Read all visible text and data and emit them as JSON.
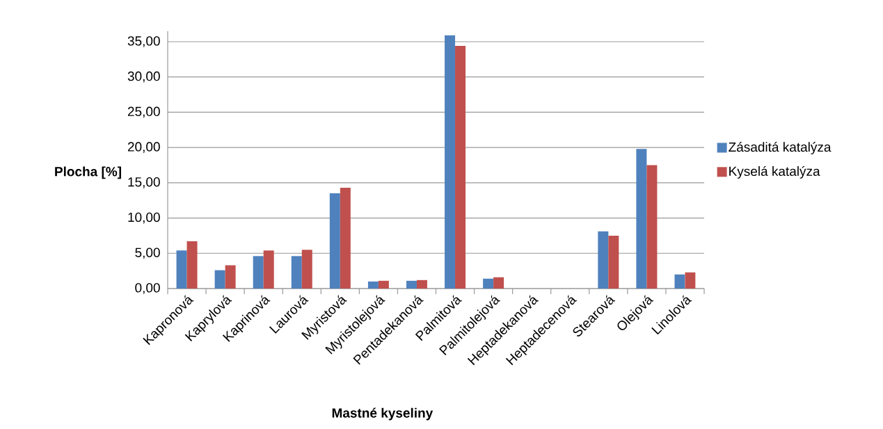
{
  "chart_data": {
    "type": "bar",
    "xlabel": "Mastné kyseliny",
    "ylabel": "Plocha [%]",
    "categories": [
      "Kapronová",
      "Kaprylová",
      "Kaprinová",
      "Laurová",
      "Myristová",
      "Myristolejová",
      "Pentadekanová",
      "Palmitová",
      "Palmitolejová",
      "Heptadekanová",
      "Heptadecenová",
      "Stearová",
      "Olejová",
      "Linolová"
    ],
    "series": [
      {
        "name": "Zásaditá katalýza",
        "color": "#4f81bd",
        "values": [
          5.4,
          2.6,
          4.6,
          4.6,
          13.5,
          1.0,
          1.1,
          35.9,
          1.4,
          0,
          0,
          8.1,
          19.8,
          2.0
        ]
      },
      {
        "name": "Kyselá katalýza",
        "color": "#c0504d",
        "values": [
          6.7,
          3.3,
          5.4,
          5.5,
          14.3,
          1.1,
          1.2,
          34.4,
          1.6,
          0,
          0,
          7.5,
          17.5,
          2.3
        ]
      }
    ],
    "ylim": [
      0,
      36.5
    ],
    "yticks": [
      {
        "value": 0,
        "label": "0,00"
      },
      {
        "value": 5,
        "label": "5,00"
      },
      {
        "value": 10,
        "label": "10,00"
      },
      {
        "value": 15,
        "label": "15,00"
      },
      {
        "value": 20,
        "label": "20,00"
      },
      {
        "value": 25,
        "label": "25,00"
      },
      {
        "value": 30,
        "label": "30,00"
      },
      {
        "value": 35,
        "label": "35,00"
      }
    ],
    "grid": "y",
    "legend": "right"
  }
}
